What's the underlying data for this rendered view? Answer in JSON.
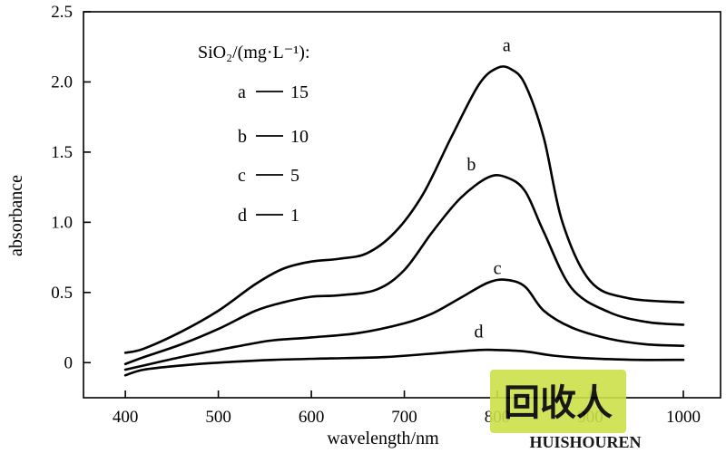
{
  "chart_data": {
    "type": "line",
    "xlabel": "wavelength/nm",
    "ylabel": "absorbance",
    "xlim": [
      355,
      1040
    ],
    "ylim": [
      -0.25,
      2.5
    ],
    "xticks": [
      400,
      500,
      600,
      700,
      800,
      900,
      1000
    ],
    "yticks": [
      0,
      0.5,
      1.0,
      1.5,
      2.0,
      2.5
    ],
    "ytick_labels": [
      "0",
      "0.5",
      "1.0",
      "1.5",
      "2.0",
      "2.5"
    ],
    "grid": false,
    "legend": {
      "title": "SiO₂/(mg·L⁻¹):",
      "placement": "top-left",
      "entries": [
        {
          "key": "a",
          "value": "15"
        },
        {
          "key": "b",
          "value": "10"
        },
        {
          "key": "c",
          "value": "5"
        },
        {
          "key": "d",
          "value": "1"
        }
      ]
    },
    "series": [
      {
        "name": "a",
        "x": [
          400,
          420,
          460,
          500,
          540,
          570,
          600,
          630,
          660,
          690,
          720,
          750,
          780,
          800,
          815,
          830,
          850,
          870,
          900,
          940,
          1000
        ],
        "y": [
          0.07,
          0.1,
          0.22,
          0.37,
          0.56,
          0.67,
          0.72,
          0.74,
          0.78,
          0.93,
          1.2,
          1.6,
          1.98,
          2.1,
          2.09,
          1.98,
          1.6,
          1.0,
          0.58,
          0.46,
          0.43
        ]
      },
      {
        "name": "b",
        "x": [
          400,
          420,
          460,
          500,
          540,
          570,
          600,
          630,
          670,
          700,
          730,
          760,
          790,
          810,
          830,
          850,
          880,
          920,
          960,
          1000
        ],
        "y": [
          -0.01,
          0.04,
          0.13,
          0.24,
          0.37,
          0.43,
          0.47,
          0.48,
          0.52,
          0.66,
          0.93,
          1.17,
          1.32,
          1.32,
          1.22,
          0.93,
          0.53,
          0.36,
          0.29,
          0.27
        ]
      },
      {
        "name": "c",
        "x": [
          400,
          420,
          460,
          500,
          540,
          560,
          600,
          650,
          700,
          730,
          760,
          790,
          810,
          830,
          850,
          880,
          920,
          960,
          1000
        ],
        "y": [
          -0.05,
          -0.02,
          0.04,
          0.09,
          0.14,
          0.16,
          0.18,
          0.21,
          0.28,
          0.35,
          0.46,
          0.57,
          0.59,
          0.54,
          0.37,
          0.25,
          0.17,
          0.13,
          0.12
        ]
      },
      {
        "name": "d",
        "x": [
          400,
          420,
          460,
          500,
          560,
          620,
          680,
          740,
          780,
          800,
          830,
          860,
          900,
          950,
          1000
        ],
        "y": [
          -0.09,
          -0.05,
          -0.02,
          0.0,
          0.02,
          0.03,
          0.04,
          0.07,
          0.09,
          0.09,
          0.08,
          0.05,
          0.03,
          0.02,
          0.02
        ]
      }
    ],
    "curve_labels": [
      {
        "text": "a",
        "x": 810,
        "y": 2.22
      },
      {
        "text": "b",
        "x": 772,
        "y": 1.37
      },
      {
        "text": "c",
        "x": 800,
        "y": 0.63
      },
      {
        "text": "d",
        "x": 780,
        "y": 0.18
      }
    ]
  },
  "watermark": {
    "text": "HUISHOUREN",
    "logo_text": "回收人",
    "color": "#cde04a"
  }
}
